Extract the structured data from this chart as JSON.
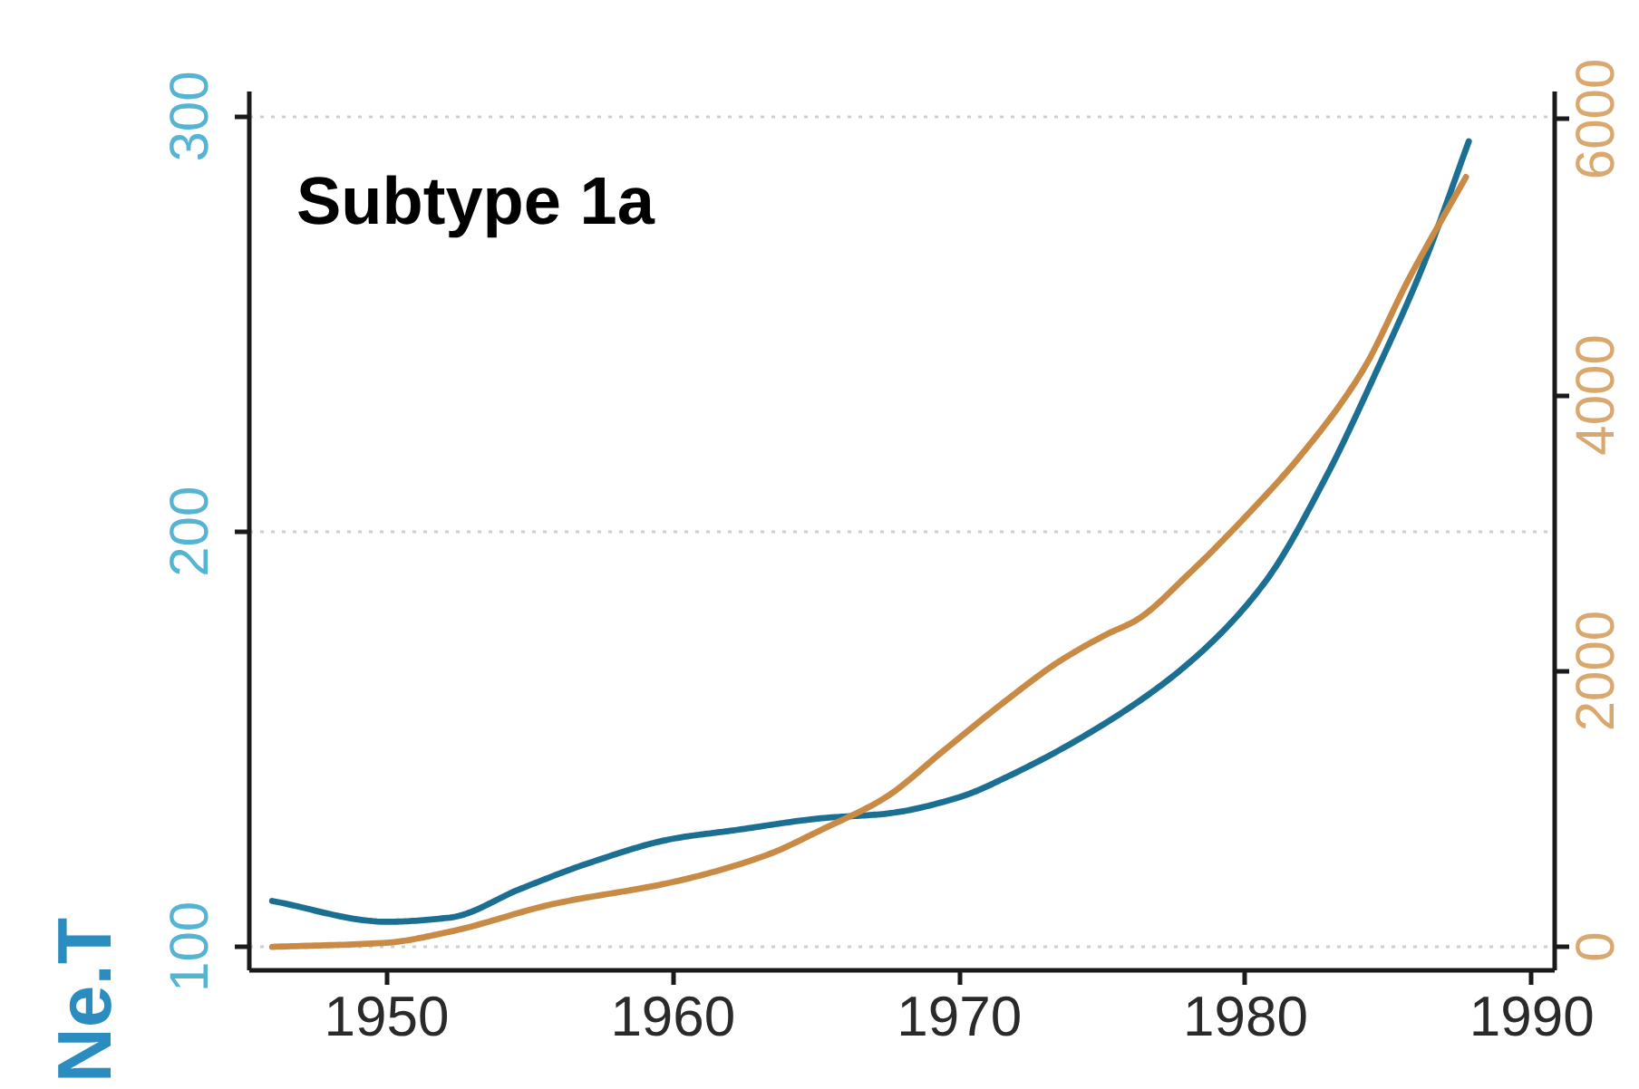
{
  "chart_data": {
    "type": "line",
    "title": "Subtype 1a",
    "ylabel": "Ne.T",
    "series": [
      {
        "color": "#1b6f93",
        "x": [
          1946,
          1950,
          1952.2,
          1954.7,
          1957,
          1960,
          1962.1,
          1965.3,
          1967.4,
          1970,
          1971.7,
          1975.6,
          1978.3,
          1980.7,
          1982.8,
          1984.6,
          1986.2,
          1987.8
        ],
        "values": [
          111,
          106,
          107,
          114,
          120,
          126,
          128,
          131,
          132,
          136,
          141,
          156,
          170,
          188,
          213,
          239,
          264,
          294
        ]
      },
      {
        "color": "#c98a45",
        "axis": "y2",
        "x": [
          1946,
          1950,
          1952.2,
          1955.8,
          1960,
          1963.2,
          1965.3,
          1967.4,
          1969.5,
          1971.6,
          1973.5,
          1975.1,
          1976.2,
          1978,
          1980.1,
          1982,
          1984.1,
          1985.7,
          1987.7
        ],
        "values": [
          0,
          30,
          110,
          310,
          470,
          660,
          860,
          1080,
          1430,
          1780,
          2070,
          2260,
          2370,
          2700,
          3140,
          3580,
          4180,
          4840,
          5580
        ]
      }
    ],
    "xlim": [
      1945.2,
      1990.8
    ],
    "xticks": [
      1950,
      1960,
      1970,
      1980,
      1990
    ],
    "ylim": [
      94.3,
      306
    ],
    "yticks": [
      100,
      200,
      300
    ],
    "y2lim": [
      -170,
      6200
    ],
    "y2ticks": [
      0,
      2000,
      4000,
      6000
    ],
    "grid": "y"
  }
}
